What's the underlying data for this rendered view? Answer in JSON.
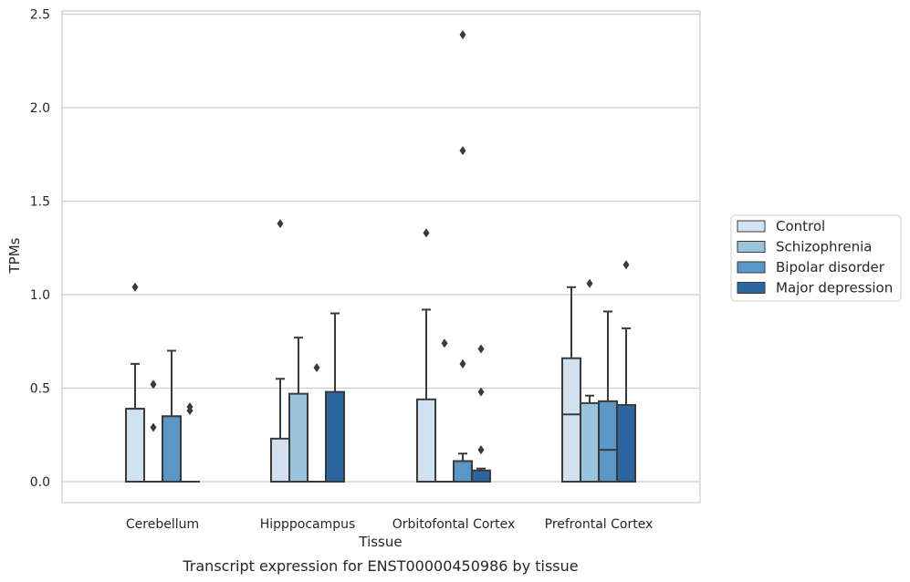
{
  "chart_data": {
    "type": "box",
    "title": "",
    "caption": "Transcript expression for ENST00000450986 by tissue",
    "xlabel": "Tissue",
    "ylabel": "TPMs",
    "ylim": [
      -0.12,
      2.52
    ],
    "yticks": [
      "0.0",
      "0.5",
      "1.0",
      "1.5",
      "2.0",
      "2.5"
    ],
    "grid": true,
    "legend_position": "right",
    "categories": [
      "Cerebellum",
      "Hipppocampus",
      "Orbitofontal Cortex",
      "Prefrontal Cortex"
    ],
    "series": [
      {
        "name": "Control",
        "color": "#d2e1f0",
        "boxes": [
          {
            "min": 0,
            "q1": 0,
            "median": 0,
            "q3": 0.39,
            "max": 0.63,
            "outliers": [
              1.04
            ]
          },
          {
            "min": 0,
            "q1": 0,
            "median": 0,
            "q3": 0.23,
            "max": 0.55,
            "outliers": [
              1.38
            ]
          },
          {
            "min": 0,
            "q1": 0,
            "median": 0,
            "q3": 0.44,
            "max": 0.92,
            "outliers": [
              1.33
            ]
          },
          {
            "min": 0,
            "q1": 0,
            "median": 0.36,
            "q3": 0.66,
            "max": 1.04,
            "outliers": []
          }
        ]
      },
      {
        "name": "Schizophrenia",
        "color": "#9ac3dc",
        "boxes": [
          {
            "min": 0,
            "q1": 0,
            "median": 0,
            "q3": 0,
            "max": 0,
            "outliers": [
              0.52,
              0.29
            ]
          },
          {
            "min": 0,
            "q1": 0,
            "median": 0,
            "q3": 0.47,
            "max": 0.77,
            "outliers": []
          },
          {
            "min": 0,
            "q1": 0,
            "median": 0,
            "q3": 0,
            "max": 0,
            "outliers": [
              0.74
            ]
          },
          {
            "min": 0,
            "q1": 0,
            "median": 0,
            "q3": 0.42,
            "max": 0.46,
            "outliers": [
              1.06
            ]
          }
        ]
      },
      {
        "name": "Bipolar disorder",
        "color": "#5a96c6",
        "boxes": [
          {
            "min": 0,
            "q1": 0,
            "median": 0,
            "q3": 0.35,
            "max": 0.7,
            "outliers": []
          },
          {
            "min": 0,
            "q1": 0,
            "median": 0,
            "q3": 0,
            "max": 0,
            "outliers": [
              0.61
            ]
          },
          {
            "min": 0,
            "q1": 0,
            "median": 0,
            "q3": 0.11,
            "max": 0.15,
            "outliers": [
              2.39,
              1.77,
              0.63
            ]
          },
          {
            "min": 0,
            "q1": 0,
            "median": 0.17,
            "q3": 0.43,
            "max": 0.91,
            "outliers": []
          }
        ]
      },
      {
        "name": "Major depression",
        "color": "#2c66a1",
        "boxes": [
          {
            "min": 0,
            "q1": 0,
            "median": 0,
            "q3": 0,
            "max": 0,
            "outliers": [
              0.4,
              0.38
            ]
          },
          {
            "min": 0,
            "q1": 0,
            "median": 0,
            "q3": 0.48,
            "max": 0.9,
            "outliers": []
          },
          {
            "min": 0,
            "q1": 0,
            "median": 0,
            "q3": 0.06,
            "max": 0.07,
            "outliers": [
              0.71,
              0.48,
              0.17
            ]
          },
          {
            "min": 0,
            "q1": 0,
            "median": 0,
            "q3": 0.41,
            "max": 0.82,
            "outliers": [
              1.16
            ]
          }
        ]
      }
    ]
  }
}
